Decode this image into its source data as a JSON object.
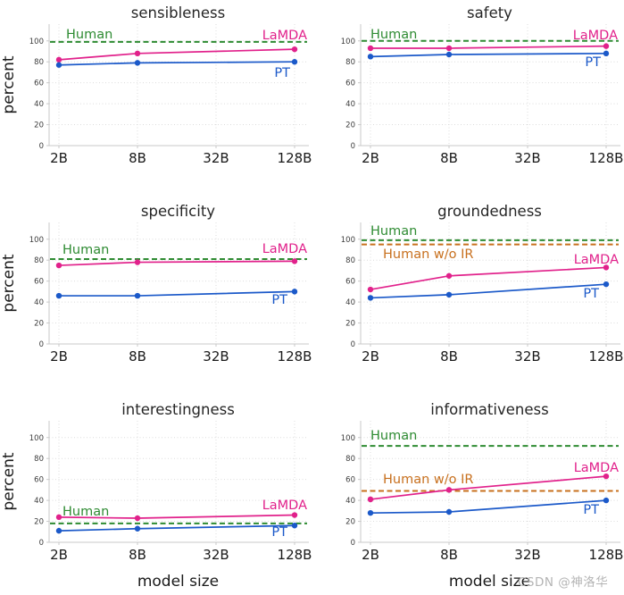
{
  "figure": {
    "ylabel": "percent",
    "xlabel": "model size"
  },
  "watermark": {
    "text": "CSDN @神洛华"
  },
  "colors": {
    "pink": "#e1218b",
    "blue": "#1b59c9",
    "green": "#2e8b32",
    "orange": "#c8701e",
    "title": "#262626",
    "tick": "#3c3c3c",
    "axis_label": "#1a1a1a",
    "grid": "#dcdcdc",
    "spine": "#c9c9c9"
  },
  "chart_data": [
    {
      "type": "line",
      "title": "sensibleness",
      "ylabel": "percent",
      "xlabel": "",
      "categories": [
        "2B",
        "8B",
        "32B",
        "128B"
      ],
      "data_at_categories": [
        0,
        1,
        3
      ],
      "ylim": [
        0,
        116
      ],
      "yticks": [
        0,
        20,
        40,
        60,
        80,
        100
      ],
      "grid": "dotted",
      "series": [
        {
          "name": "LaMDA",
          "color": "pink",
          "values": [
            82,
            88,
            92
          ]
        },
        {
          "name": "PT",
          "color": "blue",
          "values": [
            77,
            79,
            80
          ]
        }
      ],
      "hlines": [
        {
          "name": "Human",
          "value": 99,
          "color": "green"
        }
      ],
      "labels": [
        {
          "text": "Human",
          "color": "green",
          "x": 74,
          "y": 43,
          "anchor": "start"
        },
        {
          "text": "LaMDA",
          "color": "pink",
          "x": 344,
          "y": 44,
          "anchor": "end"
        },
        {
          "text": "PT",
          "color": "blue",
          "x": 325,
          "y": 86,
          "anchor": "end"
        }
      ]
    },
    {
      "type": "line",
      "title": "safety",
      "ylabel": "",
      "xlabel": "",
      "categories": [
        "2B",
        "8B",
        "32B",
        "128B"
      ],
      "data_at_categories": [
        0,
        1,
        3
      ],
      "ylim": [
        0,
        116
      ],
      "yticks": [
        0,
        20,
        40,
        60,
        80,
        100
      ],
      "grid": "dotted",
      "series": [
        {
          "name": "LaMDA",
          "color": "pink",
          "values": [
            93,
            93,
            95
          ]
        },
        {
          "name": "PT",
          "color": "blue",
          "values": [
            85,
            87,
            88
          ]
        }
      ],
      "hlines": [
        {
          "name": "Human",
          "value": 100,
          "color": "green"
        }
      ],
      "labels": [
        {
          "text": "Human",
          "color": "green",
          "x": 66,
          "y": 43,
          "anchor": "start"
        },
        {
          "text": "LaMDA",
          "color": "pink",
          "x": 343,
          "y": 44,
          "anchor": "end"
        },
        {
          "text": "PT",
          "color": "blue",
          "x": 324,
          "y": 74,
          "anchor": "end"
        }
      ]
    },
    {
      "type": "line",
      "title": "specificity",
      "ylabel": "percent",
      "xlabel": "",
      "categories": [
        "2B",
        "8B",
        "32B",
        "128B"
      ],
      "data_at_categories": [
        0,
        1,
        3
      ],
      "ylim": [
        0,
        116
      ],
      "yticks": [
        0,
        20,
        40,
        60,
        80,
        100
      ],
      "grid": "dotted",
      "series": [
        {
          "name": "LaMDA",
          "color": "pink",
          "values": [
            75,
            78,
            79
          ]
        },
        {
          "name": "PT",
          "color": "blue",
          "values": [
            46,
            46,
            50
          ]
        }
      ],
      "hlines": [
        {
          "name": "Human",
          "value": 81,
          "color": "green"
        }
      ],
      "labels": [
        {
          "text": "Human",
          "color": "green",
          "x": 70,
          "y": 62,
          "anchor": "start"
        },
        {
          "text": "LaMDA",
          "color": "pink",
          "x": 344,
          "y": 61,
          "anchor": "end"
        },
        {
          "text": "PT",
          "color": "blue",
          "x": 322,
          "y": 118,
          "anchor": "end"
        }
      ]
    },
    {
      "type": "line",
      "title": "groundedness",
      "ylabel": "",
      "xlabel": "",
      "categories": [
        "2B",
        "8B",
        "32B",
        "128B"
      ],
      "data_at_categories": [
        0,
        1,
        3
      ],
      "ylim": [
        0,
        116
      ],
      "yticks": [
        0,
        20,
        40,
        60,
        80,
        100
      ],
      "grid": "dotted",
      "series": [
        {
          "name": "LaMDA",
          "color": "pink",
          "values": [
            52,
            65,
            73
          ]
        },
        {
          "name": "PT",
          "color": "blue",
          "values": [
            44,
            47,
            57
          ]
        }
      ],
      "hlines": [
        {
          "name": "Human",
          "value": 99,
          "color": "green"
        },
        {
          "name": "Human w/o IR",
          "value": 95,
          "color": "orange"
        }
      ],
      "labels": [
        {
          "text": "Human",
          "color": "green",
          "x": 66,
          "y": 41,
          "anchor": "start"
        },
        {
          "text": "Human w/o IR",
          "color": "orange",
          "x": 80,
          "y": 67,
          "anchor": "start"
        },
        {
          "text": "LaMDA",
          "color": "pink",
          "x": 344,
          "y": 73,
          "anchor": "end"
        },
        {
          "text": "PT",
          "color": "blue",
          "x": 322,
          "y": 111,
          "anchor": "end"
        }
      ]
    },
    {
      "type": "line",
      "title": "interestingness",
      "ylabel": "percent",
      "xlabel": "model size",
      "categories": [
        "2B",
        "8B",
        "32B",
        "128B"
      ],
      "data_at_categories": [
        0,
        1,
        3
      ],
      "ylim": [
        0,
        116
      ],
      "yticks": [
        0,
        20,
        40,
        60,
        80,
        100
      ],
      "grid": "dotted",
      "series": [
        {
          "name": "LaMDA",
          "color": "pink",
          "values": [
            24,
            23,
            26
          ]
        },
        {
          "name": "PT",
          "color": "blue",
          "values": [
            11,
            13,
            16
          ]
        }
      ],
      "hlines": [
        {
          "name": "Human",
          "value": 18,
          "color": "green"
        }
      ],
      "labels": [
        {
          "text": "Human",
          "color": "green",
          "x": 70,
          "y": 133,
          "anchor": "start"
        },
        {
          "text": "LaMDA",
          "color": "pink",
          "x": 344,
          "y": 126,
          "anchor": "end"
        },
        {
          "text": "PT",
          "color": "blue",
          "x": 322,
          "y": 156,
          "anchor": "end"
        }
      ]
    },
    {
      "type": "line",
      "title": "informativeness",
      "ylabel": "",
      "xlabel": "model size",
      "categories": [
        "2B",
        "8B",
        "32B",
        "128B"
      ],
      "data_at_categories": [
        0,
        1,
        3
      ],
      "ylim": [
        0,
        116
      ],
      "yticks": [
        0,
        20,
        40,
        60,
        80,
        100
      ],
      "grid": "dotted",
      "series": [
        {
          "name": "LaMDA",
          "color": "pink",
          "values": [
            41,
            50,
            63
          ]
        },
        {
          "name": "PT",
          "color": "blue",
          "values": [
            28,
            29,
            40
          ]
        }
      ],
      "hlines": [
        {
          "name": "Human",
          "value": 92,
          "color": "green"
        },
        {
          "name": "Human w/o IR",
          "value": 49,
          "color": "orange"
        }
      ],
      "labels": [
        {
          "text": "Human",
          "color": "green",
          "x": 66,
          "y": 48,
          "anchor": "start"
        },
        {
          "text": "Human w/o IR",
          "color": "orange",
          "x": 80,
          "y": 97,
          "anchor": "start"
        },
        {
          "text": "LaMDA",
          "color": "pink",
          "x": 344,
          "y": 84,
          "anchor": "end"
        },
        {
          "text": "PT",
          "color": "blue",
          "x": 322,
          "y": 131,
          "anchor": "end"
        }
      ]
    }
  ]
}
